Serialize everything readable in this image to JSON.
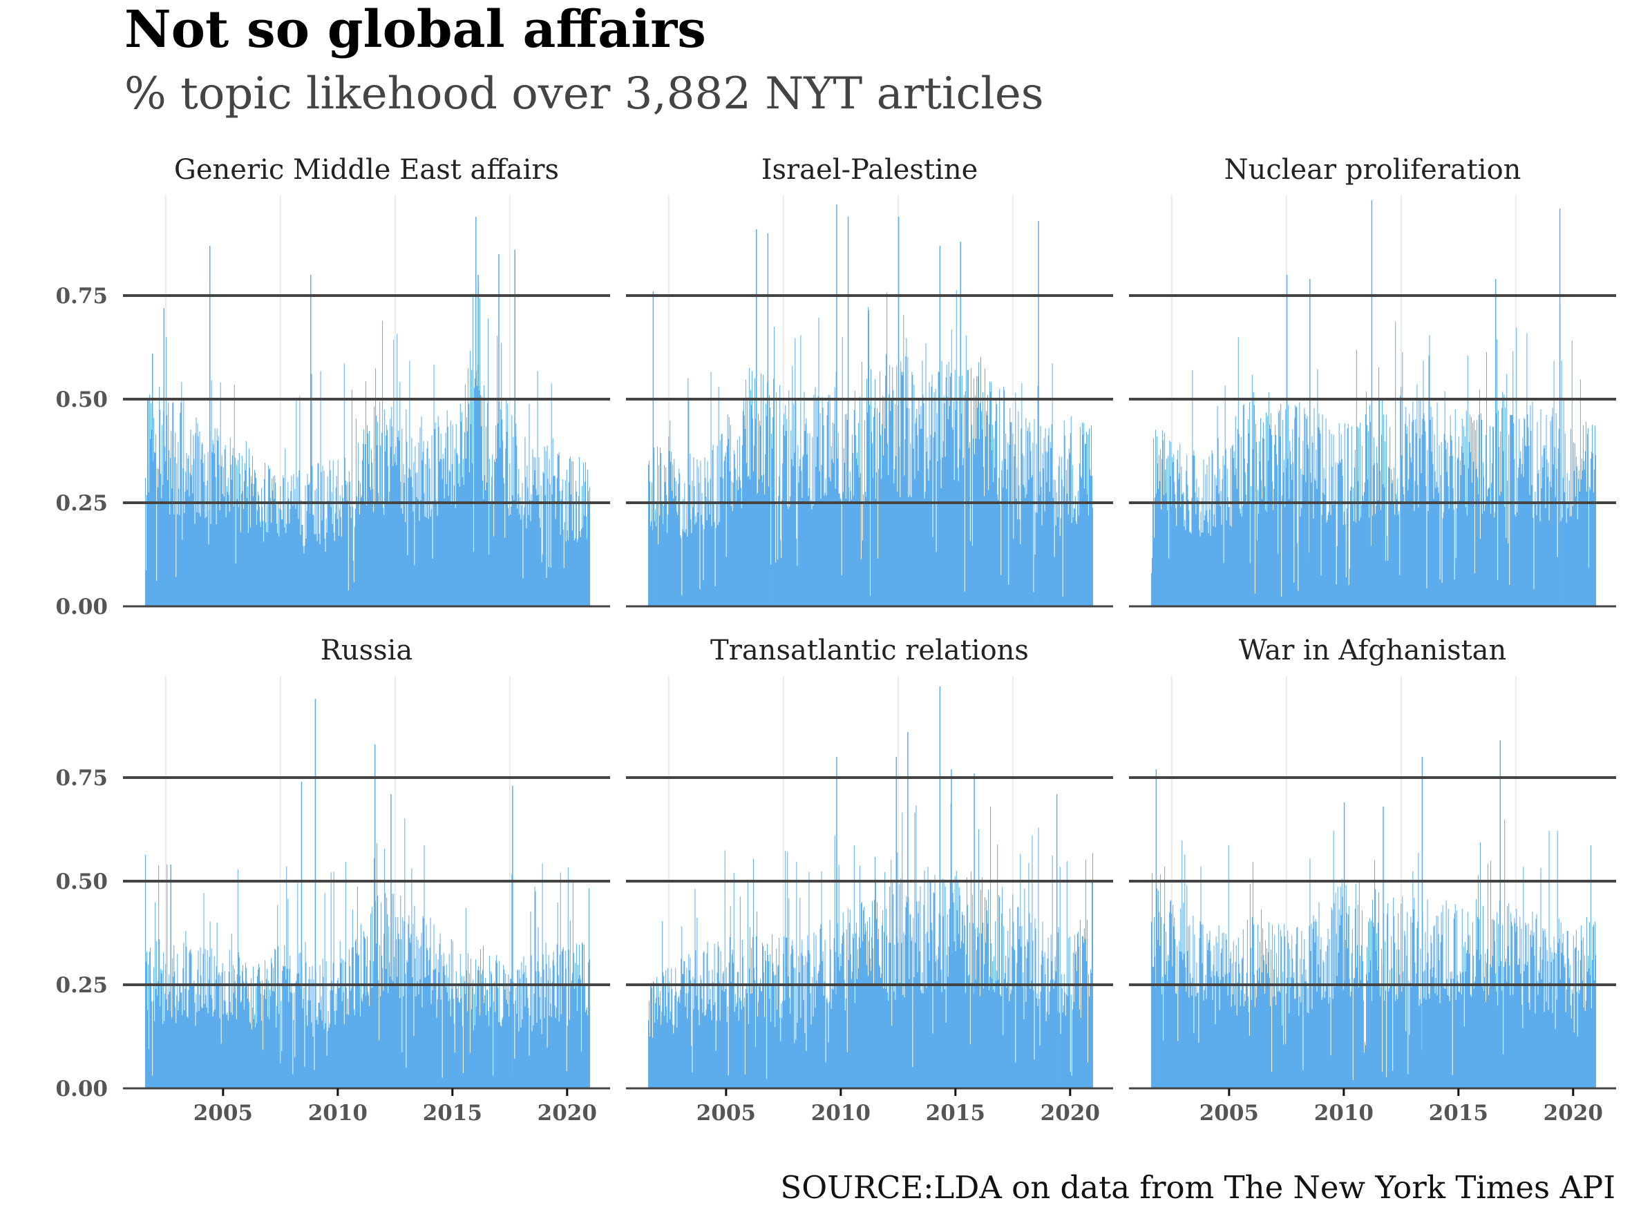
{
  "header": {
    "title": "Not so global affairs",
    "subtitle": "% topic likehood over 3,882 NYT articles"
  },
  "caption": "SOURCE:LDA on data from The New York Times API",
  "colors": {
    "bar": "#5DADEC",
    "major_grid": "#444444",
    "minor_grid": "#EBEBEB",
    "axis_text": "#555555",
    "tick": "#111111"
  },
  "chart_data": {
    "type": "bar",
    "title": "Not so global affairs",
    "subtitle": "% topic likehood over 3,882 NYT articles",
    "caption": "SOURCE:LDA on data from The New York Times API",
    "xlabel": "",
    "ylabel": "",
    "xlim": [
      2001.6,
      2021.0
    ],
    "ylim": [
      0,
      1.0
    ],
    "yticks": [
      0.0,
      0.25,
      0.5,
      0.75
    ],
    "ytick_labels": [
      "0.00",
      "0.25",
      "0.50",
      "0.75"
    ],
    "xticks": [
      2005,
      2010,
      2015,
      2020
    ],
    "xtick_labels": [
      "2005",
      "2010",
      "2015",
      "2020"
    ],
    "minor_x_grid": [
      2002.5,
      2007.5,
      2012.5,
      2017.5
    ],
    "grid": "horizontal major on, vertical minor light",
    "legend": "none",
    "facets": [
      {
        "name": "Generic Middle East affairs",
        "typical_range": [
          0.15,
          0.45
        ],
        "peaks": [
          [
            2001.9,
            0.61
          ],
          [
            2002.4,
            0.72
          ],
          [
            2004.4,
            0.87
          ],
          [
            2004.4,
            0.79
          ],
          [
            2008.8,
            0.8
          ],
          [
            2016.0,
            0.94
          ],
          [
            2016.1,
            0.8
          ],
          [
            2017.0,
            0.85
          ],
          [
            2017.7,
            0.86
          ]
        ],
        "profile_years": [
          2002,
          2004,
          2006,
          2008,
          2010,
          2012,
          2014,
          2016,
          2018,
          2020
        ],
        "profile_values": [
          0.42,
          0.35,
          0.3,
          0.25,
          0.28,
          0.4,
          0.33,
          0.5,
          0.33,
          0.28
        ]
      },
      {
        "name": "Israel-Palestine",
        "typical_range": [
          0.2,
          0.55
        ],
        "peaks": [
          [
            2001.8,
            0.76
          ],
          [
            2006.3,
            0.91
          ],
          [
            2006.8,
            0.9
          ],
          [
            2009.8,
            0.97
          ],
          [
            2010.3,
            0.94
          ],
          [
            2012.5,
            0.94
          ],
          [
            2014.3,
            0.87
          ],
          [
            2015.2,
            0.88
          ],
          [
            2018.6,
            0.93
          ]
        ],
        "profile_years": [
          2002,
          2004,
          2006,
          2008,
          2010,
          2012,
          2014,
          2016,
          2018,
          2020
        ],
        "profile_values": [
          0.3,
          0.28,
          0.45,
          0.4,
          0.42,
          0.48,
          0.45,
          0.48,
          0.35,
          0.35
        ]
      },
      {
        "name": "Nuclear proliferation",
        "typical_range": [
          0.15,
          0.5
        ],
        "peaks": [
          [
            2007.5,
            0.8
          ],
          [
            2008.5,
            0.79
          ],
          [
            2011.2,
            0.98
          ],
          [
            2016.6,
            0.79
          ],
          [
            2019.4,
            0.96
          ],
          [
            2019.4,
            0.73
          ]
        ],
        "profile_years": [
          2002,
          2004,
          2006,
          2008,
          2010,
          2012,
          2014,
          2016,
          2018,
          2020
        ],
        "profile_values": [
          0.33,
          0.28,
          0.4,
          0.38,
          0.35,
          0.4,
          0.38,
          0.36,
          0.38,
          0.35
        ]
      },
      {
        "name": "Russia",
        "typical_range": [
          0.1,
          0.4
        ],
        "peaks": [
          [
            2002.7,
            0.54
          ],
          [
            2008.4,
            0.74
          ],
          [
            2009.0,
            0.94
          ],
          [
            2011.6,
            0.83
          ],
          [
            2012.3,
            0.71
          ],
          [
            2017.6,
            0.73
          ]
        ],
        "profile_years": [
          2002,
          2004,
          2006,
          2008,
          2010,
          2012,
          2014,
          2016,
          2018,
          2020
        ],
        "profile_values": [
          0.28,
          0.27,
          0.25,
          0.27,
          0.24,
          0.38,
          0.32,
          0.25,
          0.25,
          0.3
        ]
      },
      {
        "name": "Transatlantic relations",
        "typical_range": [
          0.15,
          0.5
        ],
        "peaks": [
          [
            2009.8,
            0.8
          ],
          [
            2012.4,
            0.8
          ],
          [
            2012.9,
            0.86
          ],
          [
            2014.3,
            0.97
          ],
          [
            2014.8,
            0.77
          ],
          [
            2015.8,
            0.76
          ],
          [
            2019.4,
            0.71
          ]
        ],
        "profile_years": [
          2002,
          2004,
          2006,
          2008,
          2010,
          2012,
          2014,
          2016,
          2018,
          2020
        ],
        "profile_values": [
          0.22,
          0.27,
          0.3,
          0.28,
          0.33,
          0.38,
          0.42,
          0.4,
          0.35,
          0.3
        ]
      },
      {
        "name": "War in Afghanistan",
        "typical_range": [
          0.15,
          0.45
        ],
        "peaks": [
          [
            2001.8,
            0.77
          ],
          [
            2013.4,
            0.8
          ],
          [
            2016.8,
            0.84
          ],
          [
            2011.7,
            0.68
          ],
          [
            2010.0,
            0.69
          ]
        ],
        "profile_years": [
          2002,
          2004,
          2006,
          2008,
          2010,
          2012,
          2014,
          2016,
          2018,
          2020
        ],
        "profile_values": [
          0.4,
          0.3,
          0.32,
          0.3,
          0.4,
          0.36,
          0.35,
          0.38,
          0.33,
          0.32
        ]
      }
    ],
    "n_bars_per_facet": 640,
    "seed": 42
  }
}
